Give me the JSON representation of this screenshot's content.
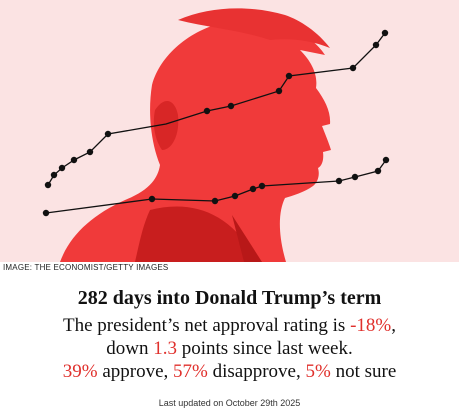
{
  "image": {
    "credit": "IMAGE: THE ECONOMIST/GETTY IMAGES",
    "subject_color": "#f03a3a",
    "background_color": "#fbe3e3",
    "trend_line_color": "#111111"
  },
  "headline": "282 days into Donald Trump’s term",
  "summary": {
    "line1_prefix": "The president’s net approval rating is ",
    "net_approval": "-18%",
    "line1_suffix": ",",
    "line2_prefix": "down ",
    "weekly_change": "1.3",
    "line2_suffix": " points since last week.",
    "approve_value": "39%",
    "approve_label": " approve, ",
    "disapprove_value": "57%",
    "disapprove_label": " disapprove, ",
    "not_sure_value": "5%",
    "not_sure_label": " not sure"
  },
  "last_updated": "Last updated on October 29th 2025",
  "accent_color": "#e0302c"
}
